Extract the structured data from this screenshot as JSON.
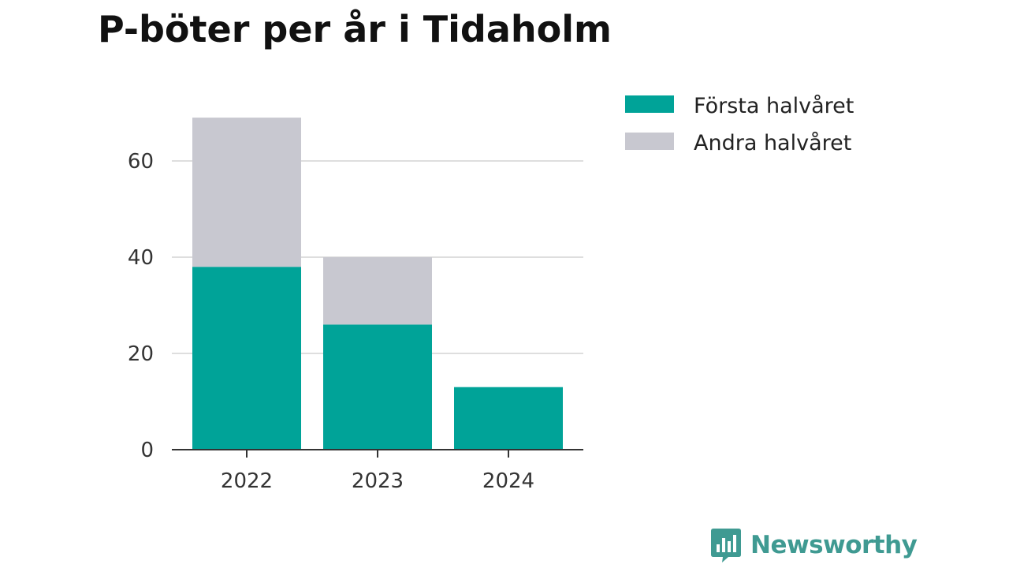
{
  "title": "P-böter per år i Tidaholm",
  "chart_data": {
    "type": "bar",
    "stacked": true,
    "title": "P-böter per år i Tidaholm",
    "xlabel": "",
    "ylabel": "",
    "categories": [
      "2022",
      "2023",
      "2024"
    ],
    "series": [
      {
        "name": "Första halvåret",
        "values": [
          38,
          26,
          13
        ],
        "color": "#00a398"
      },
      {
        "name": "Andra halvåret",
        "values": [
          31,
          14,
          0
        ],
        "color": "#c8c8d0"
      }
    ],
    "ylim": [
      0,
      70
    ],
    "yticks": [
      0,
      20,
      40,
      60
    ],
    "grid": true,
    "legend_position": "top-right"
  },
  "branding": {
    "name": "Newsworthy",
    "icon": "bar-chart-speech-bubble-icon",
    "color": "#3f9a92"
  }
}
